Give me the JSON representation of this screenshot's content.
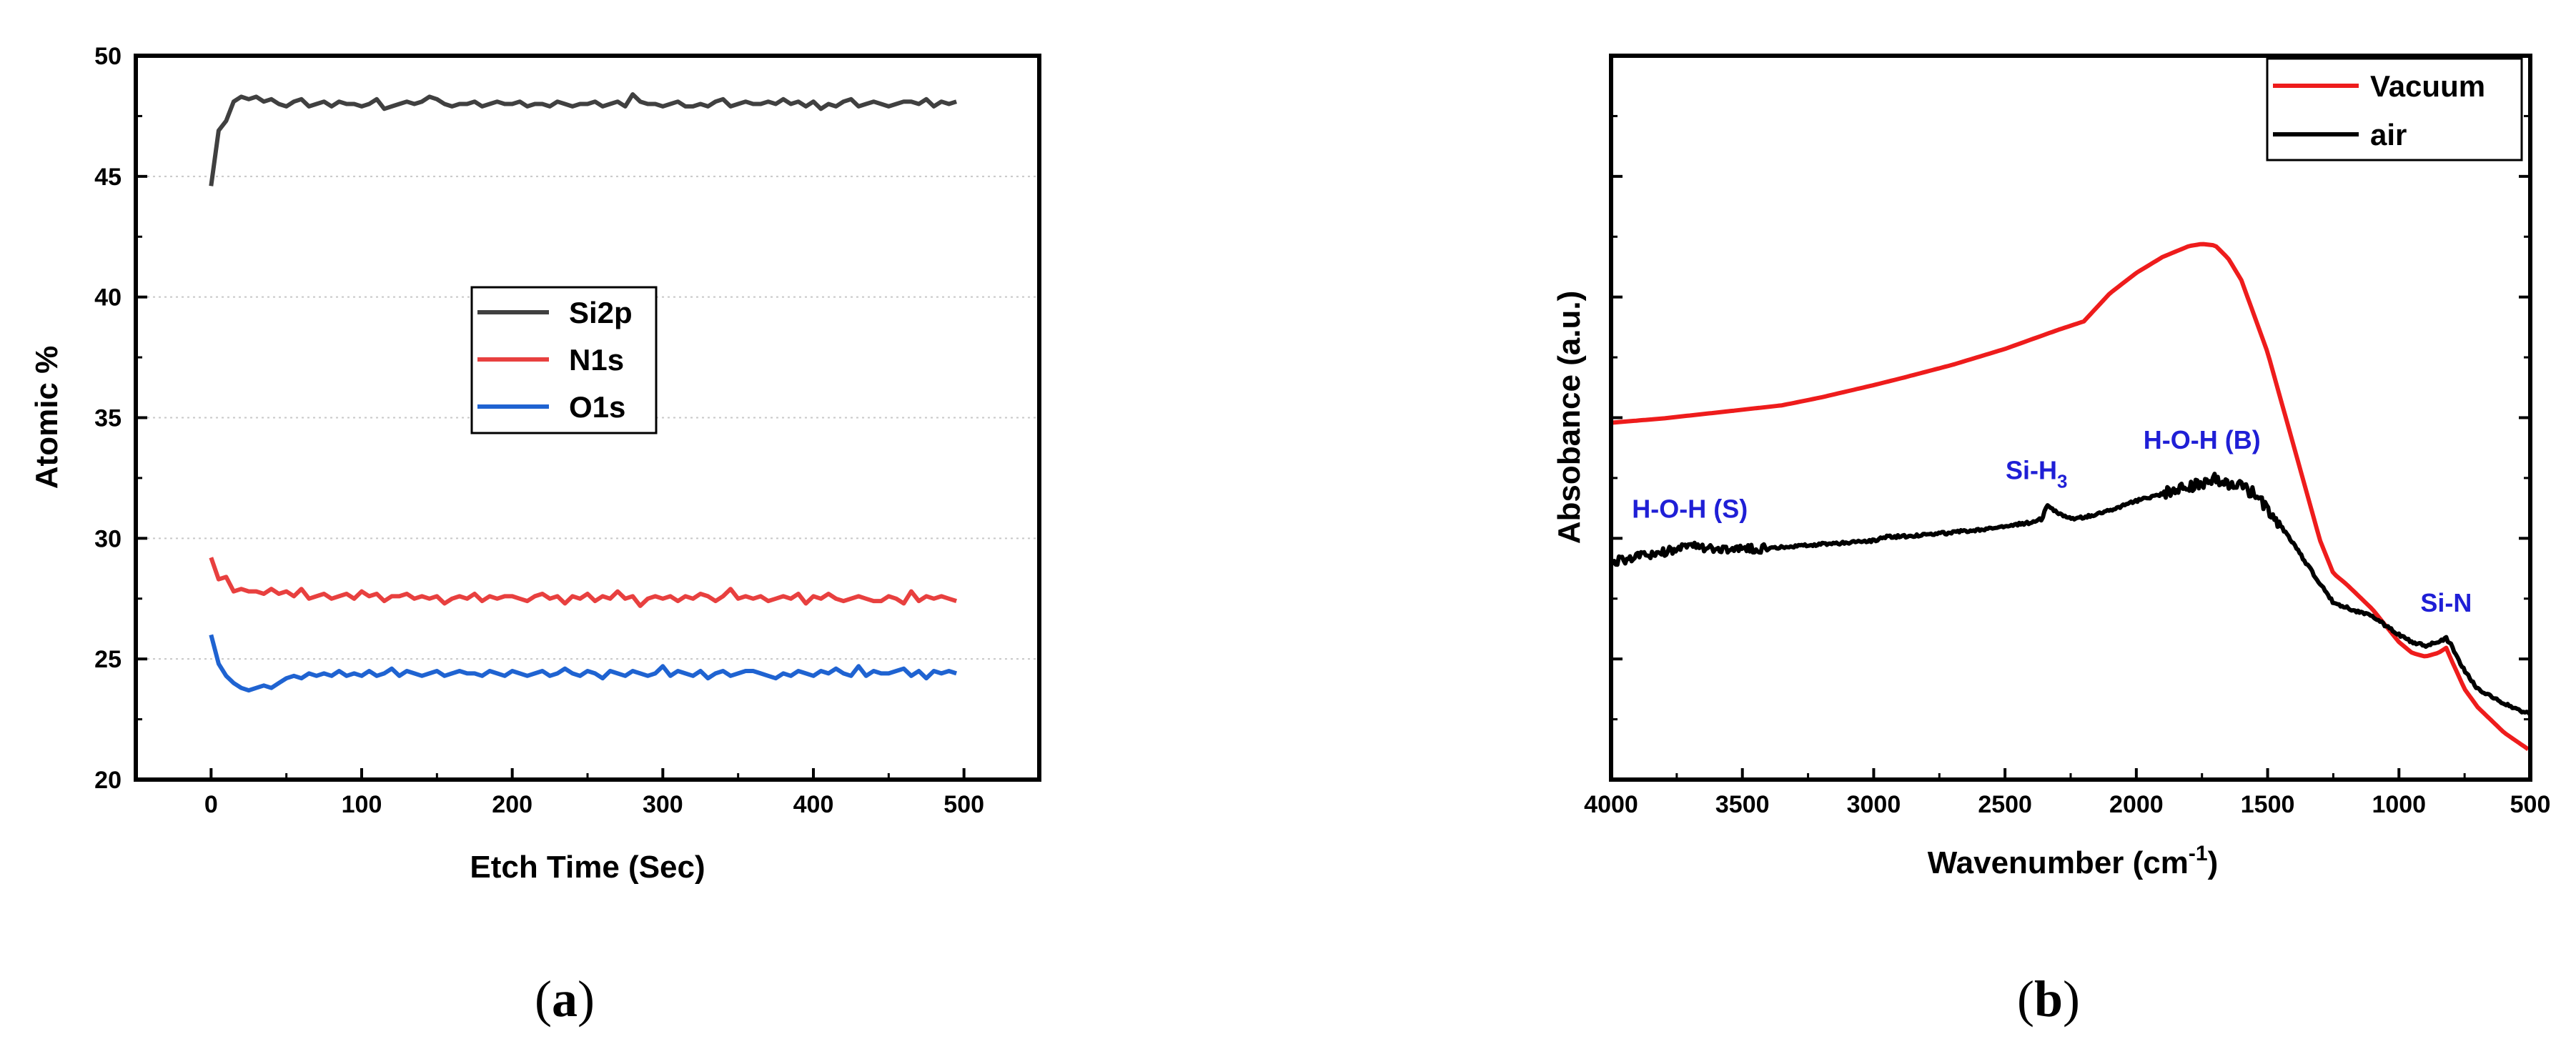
{
  "chart_data": [
    {
      "type": "line",
      "panel_label": "a",
      "title": "",
      "xlabel": "Etch Time (Sec)",
      "ylabel": "Atomic %",
      "xlim": [
        -50,
        550
      ],
      "ylim": [
        20,
        50
      ],
      "xticks": [
        0,
        100,
        200,
        300,
        400,
        500
      ],
      "yticks": [
        20,
        25,
        30,
        35,
        40,
        45,
        50
      ],
      "grid": "horizontal dotted",
      "legend": "center",
      "series": [
        {
          "name": "Si2p",
          "color": "#404040",
          "x": [
            0,
            5,
            10,
            15,
            20,
            25,
            30,
            35,
            40,
            45,
            50,
            55,
            60,
            65,
            70,
            75,
            80,
            85,
            90,
            95,
            100,
            105,
            110,
            115,
            120,
            125,
            130,
            135,
            140,
            145,
            150,
            155,
            160,
            165,
            170,
            175,
            180,
            185,
            190,
            195,
            200,
            205,
            210,
            215,
            220,
            225,
            230,
            235,
            240,
            245,
            250,
            255,
            260,
            265,
            270,
            275,
            280,
            285,
            290,
            295,
            300,
            305,
            310,
            315,
            320,
            325,
            330,
            335,
            340,
            345,
            350,
            355,
            360,
            365,
            370,
            375,
            380,
            385,
            390,
            395,
            400,
            405,
            410,
            415,
            420,
            425,
            430,
            435,
            440,
            445,
            450,
            455,
            460,
            465,
            470,
            475,
            480,
            485,
            490,
            495
          ],
          "y": [
            44.6,
            46.9,
            47.3,
            48.1,
            48.3,
            48.2,
            48.3,
            48.1,
            48.2,
            48.0,
            47.9,
            48.1,
            48.2,
            47.9,
            48.0,
            48.1,
            47.9,
            48.1,
            48.0,
            48.0,
            47.9,
            48.0,
            48.2,
            47.8,
            47.9,
            48.0,
            48.1,
            48.0,
            48.1,
            48.3,
            48.2,
            48.0,
            47.9,
            48.0,
            48.0,
            48.1,
            47.9,
            48.0,
            48.1,
            48.0,
            48.0,
            48.1,
            47.9,
            48.0,
            48.0,
            47.9,
            48.1,
            48.0,
            47.9,
            48.0,
            48.0,
            48.1,
            47.9,
            48.0,
            48.1,
            47.9,
            48.4,
            48.1,
            48.0,
            48.0,
            47.9,
            48.0,
            48.1,
            47.9,
            47.9,
            48.0,
            47.9,
            48.1,
            48.2,
            47.9,
            48.0,
            48.1,
            48.0,
            48.0,
            48.1,
            48.0,
            48.2,
            48.0,
            48.1,
            47.9,
            48.1,
            47.8,
            48.0,
            47.9,
            48.1,
            48.2,
            47.9,
            48.0,
            48.1,
            48.0,
            47.9,
            48.0,
            48.1,
            48.1,
            48.0,
            48.2,
            47.9,
            48.1,
            48.0,
            48.1
          ]
        },
        {
          "name": "N1s",
          "color": "#e8403f",
          "x": [
            0,
            5,
            10,
            15,
            20,
            25,
            30,
            35,
            40,
            45,
            50,
            55,
            60,
            65,
            70,
            75,
            80,
            85,
            90,
            95,
            100,
            105,
            110,
            115,
            120,
            125,
            130,
            135,
            140,
            145,
            150,
            155,
            160,
            165,
            170,
            175,
            180,
            185,
            190,
            195,
            200,
            205,
            210,
            215,
            220,
            225,
            230,
            235,
            240,
            245,
            250,
            255,
            260,
            265,
            270,
            275,
            280,
            285,
            290,
            295,
            300,
            305,
            310,
            315,
            320,
            325,
            330,
            335,
            340,
            345,
            350,
            355,
            360,
            365,
            370,
            375,
            380,
            385,
            390,
            395,
            400,
            405,
            410,
            415,
            420,
            425,
            430,
            435,
            440,
            445,
            450,
            455,
            460,
            465,
            470,
            475,
            480,
            485,
            490,
            495
          ],
          "y": [
            29.2,
            28.3,
            28.4,
            27.8,
            27.9,
            27.8,
            27.8,
            27.7,
            27.9,
            27.7,
            27.8,
            27.6,
            27.9,
            27.5,
            27.6,
            27.7,
            27.5,
            27.6,
            27.7,
            27.5,
            27.8,
            27.6,
            27.7,
            27.4,
            27.6,
            27.6,
            27.7,
            27.5,
            27.6,
            27.5,
            27.6,
            27.3,
            27.5,
            27.6,
            27.5,
            27.7,
            27.4,
            27.6,
            27.5,
            27.6,
            27.6,
            27.5,
            27.4,
            27.6,
            27.7,
            27.5,
            27.6,
            27.3,
            27.6,
            27.5,
            27.7,
            27.4,
            27.6,
            27.5,
            27.8,
            27.5,
            27.6,
            27.2,
            27.5,
            27.6,
            27.5,
            27.6,
            27.4,
            27.6,
            27.5,
            27.7,
            27.6,
            27.4,
            27.6,
            27.9,
            27.5,
            27.6,
            27.5,
            27.6,
            27.4,
            27.5,
            27.6,
            27.5,
            27.7,
            27.3,
            27.6,
            27.5,
            27.7,
            27.5,
            27.4,
            27.5,
            27.6,
            27.5,
            27.4,
            27.4,
            27.6,
            27.5,
            27.3,
            27.8,
            27.4,
            27.6,
            27.5,
            27.6,
            27.5,
            27.4
          ]
        },
        {
          "name": "O1s",
          "color": "#1f63d1",
          "x": [
            0,
            5,
            10,
            15,
            20,
            25,
            30,
            35,
            40,
            45,
            50,
            55,
            60,
            65,
            70,
            75,
            80,
            85,
            90,
            95,
            100,
            105,
            110,
            115,
            120,
            125,
            130,
            135,
            140,
            145,
            150,
            155,
            160,
            165,
            170,
            175,
            180,
            185,
            190,
            195,
            200,
            205,
            210,
            215,
            220,
            225,
            230,
            235,
            240,
            245,
            250,
            255,
            260,
            265,
            270,
            275,
            280,
            285,
            290,
            295,
            300,
            305,
            310,
            315,
            320,
            325,
            330,
            335,
            340,
            345,
            350,
            355,
            360,
            365,
            370,
            375,
            380,
            385,
            390,
            395,
            400,
            405,
            410,
            415,
            420,
            425,
            430,
            435,
            440,
            445,
            450,
            455,
            460,
            465,
            470,
            475,
            480,
            485,
            490,
            495
          ],
          "y": [
            26.0,
            24.8,
            24.3,
            24.0,
            23.8,
            23.7,
            23.8,
            23.9,
            23.8,
            24.0,
            24.2,
            24.3,
            24.2,
            24.4,
            24.3,
            24.4,
            24.3,
            24.5,
            24.3,
            24.4,
            24.3,
            24.5,
            24.3,
            24.4,
            24.6,
            24.3,
            24.5,
            24.4,
            24.3,
            24.4,
            24.5,
            24.3,
            24.4,
            24.5,
            24.4,
            24.4,
            24.3,
            24.5,
            24.4,
            24.3,
            24.5,
            24.4,
            24.3,
            24.4,
            24.5,
            24.3,
            24.4,
            24.6,
            24.4,
            24.3,
            24.5,
            24.4,
            24.2,
            24.5,
            24.4,
            24.3,
            24.5,
            24.4,
            24.3,
            24.4,
            24.7,
            24.3,
            24.5,
            24.4,
            24.3,
            24.5,
            24.2,
            24.4,
            24.5,
            24.3,
            24.4,
            24.5,
            24.5,
            24.4,
            24.3,
            24.2,
            24.4,
            24.3,
            24.5,
            24.4,
            24.3,
            24.5,
            24.4,
            24.6,
            24.4,
            24.3,
            24.7,
            24.3,
            24.5,
            24.4,
            24.4,
            24.5,
            24.6,
            24.3,
            24.5,
            24.2,
            24.5,
            24.4,
            24.5,
            24.4
          ]
        }
      ]
    },
    {
      "type": "line",
      "panel_label": "b",
      "title": "",
      "xlabel": "Wavenumber (cm",
      "xlabel_superscript": "-1",
      "xlabel_suffix": ")",
      "ylabel": "Absobance (a.u.)",
      "xlim": [
        4000,
        500
      ],
      "ylim": [
        0,
        1
      ],
      "xticks": [
        4000,
        3500,
        3000,
        2500,
        2000,
        1500,
        1000,
        500
      ],
      "y_tick_labels_shown": false,
      "grid": "off",
      "legend": "top-right",
      "series": [
        {
          "name": "Vacuum",
          "color": "#ee1c1c",
          "x": [
            4000,
            3800,
            3600,
            3400,
            3350,
            3200,
            3000,
            2900,
            2700,
            2500,
            2300,
            2200,
            2100,
            2000,
            1900,
            1800,
            1750,
            1700,
            1650,
            1600,
            1500,
            1400,
            1300,
            1250,
            1200,
            1100,
            1000,
            950,
            900,
            850,
            820,
            800,
            750,
            700,
            600,
            500
          ],
          "y": [
            0.493,
            0.499,
            0.507,
            0.515,
            0.517,
            0.528,
            0.545,
            0.554,
            0.573,
            0.595,
            0.621,
            0.633,
            0.672,
            0.7,
            0.722,
            0.737,
            0.74,
            0.738,
            0.72,
            0.69,
            0.59,
            0.46,
            0.33,
            0.285,
            0.27,
            0.235,
            0.19,
            0.175,
            0.17,
            0.175,
            0.182,
            0.165,
            0.125,
            0.1,
            0.065,
            0.04
          ]
        },
        {
          "name": "air",
          "color": "#000000",
          "x": [
            4000,
            3900,
            3800,
            3700,
            3600,
            3500,
            3400,
            3300,
            3200,
            3000,
            2950,
            2800,
            2600,
            2400,
            2360,
            2340,
            2300,
            2250,
            2200,
            2100,
            2000,
            1900,
            1800,
            1700,
            1650,
            1600,
            1550,
            1500,
            1450,
            1400,
            1300,
            1250,
            1200,
            1100,
            1000,
            950,
            900,
            850,
            820,
            800,
            750,
            700,
            600,
            500
          ],
          "y": [
            0.3,
            0.308,
            0.315,
            0.322,
            0.32,
            0.318,
            0.32,
            0.322,
            0.325,
            0.33,
            0.335,
            0.338,
            0.345,
            0.355,
            0.36,
            0.378,
            0.368,
            0.36,
            0.362,
            0.372,
            0.385,
            0.395,
            0.405,
            0.415,
            0.41,
            0.405,
            0.395,
            0.375,
            0.35,
            0.325,
            0.27,
            0.245,
            0.238,
            0.225,
            0.2,
            0.19,
            0.185,
            0.19,
            0.195,
            0.185,
            0.15,
            0.125,
            0.105,
            0.09
          ]
        }
      ],
      "annotations": [
        {
          "text": "H-O-H (S)",
          "x": 3700,
          "y": 0.362,
          "color": "#1f1fd6"
        },
        {
          "text": "Si-H",
          "sub": "3",
          "x": 2380,
          "y": 0.415,
          "color": "#1f1fd6"
        },
        {
          "text": "H-O-H (B)",
          "x": 1750,
          "y": 0.457,
          "color": "#1f1fd6"
        },
        {
          "text": "Si-N",
          "x": 820,
          "y": 0.232,
          "color": "#1f1fd6"
        }
      ]
    }
  ]
}
